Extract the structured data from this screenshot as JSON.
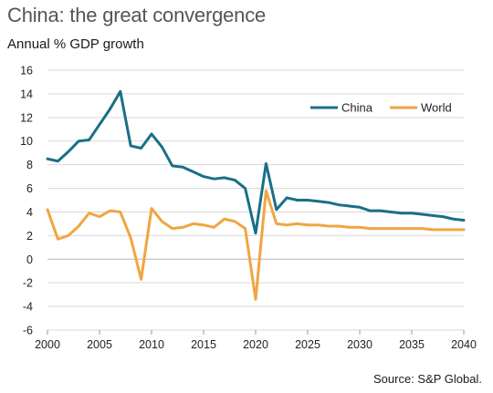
{
  "header": {
    "title": "China: the great convergence",
    "subtitle": "Annual % GDP growth"
  },
  "footer": {
    "source": "Source: S&P Global."
  },
  "chart_data": {
    "type": "line",
    "title": "China: the great convergence",
    "subtitle": "Annual % GDP growth",
    "xlabel": "",
    "ylabel": "",
    "xlim": [
      2000,
      2040
    ],
    "ylim": [
      -6,
      16
    ],
    "x_ticks": [
      2000,
      2005,
      2010,
      2015,
      2020,
      2025,
      2030,
      2035,
      2040
    ],
    "y_ticks": [
      -6,
      -4,
      -2,
      0,
      2,
      4,
      6,
      8,
      10,
      12,
      14,
      16
    ],
    "grid": "horizontal",
    "legend_position": "top-right",
    "x": [
      2000,
      2001,
      2002,
      2003,
      2004,
      2005,
      2006,
      2007,
      2008,
      2009,
      2010,
      2011,
      2012,
      2013,
      2014,
      2015,
      2016,
      2017,
      2018,
      2019,
      2020,
      2021,
      2022,
      2023,
      2024,
      2025,
      2026,
      2027,
      2028,
      2029,
      2030,
      2031,
      2032,
      2033,
      2034,
      2035,
      2036,
      2037,
      2038,
      2039,
      2040
    ],
    "series": [
      {
        "name": "China",
        "color": "#1a6f87",
        "values": [
          8.5,
          8.3,
          9.1,
          10.0,
          10.1,
          11.4,
          12.7,
          14.2,
          9.6,
          9.4,
          10.6,
          9.5,
          7.9,
          7.8,
          7.4,
          7.0,
          6.8,
          6.9,
          6.7,
          6.0,
          2.2,
          8.1,
          4.2,
          5.2,
          5.0,
          5.0,
          4.9,
          4.8,
          4.6,
          4.5,
          4.4,
          4.1,
          4.1,
          4.0,
          3.9,
          3.9,
          3.8,
          3.7,
          3.6,
          3.4,
          3.3
        ]
      },
      {
        "name": "World",
        "color": "#f0a640",
        "values": [
          4.2,
          1.7,
          2.0,
          2.8,
          3.9,
          3.6,
          4.1,
          4.0,
          1.8,
          -1.7,
          4.3,
          3.2,
          2.6,
          2.7,
          3.0,
          2.9,
          2.7,
          3.4,
          3.2,
          2.6,
          -3.4,
          5.8,
          3.0,
          2.9,
          3.0,
          2.9,
          2.9,
          2.8,
          2.8,
          2.7,
          2.7,
          2.6,
          2.6,
          2.6,
          2.6,
          2.6,
          2.6,
          2.5,
          2.5,
          2.5,
          2.5
        ]
      }
    ]
  }
}
